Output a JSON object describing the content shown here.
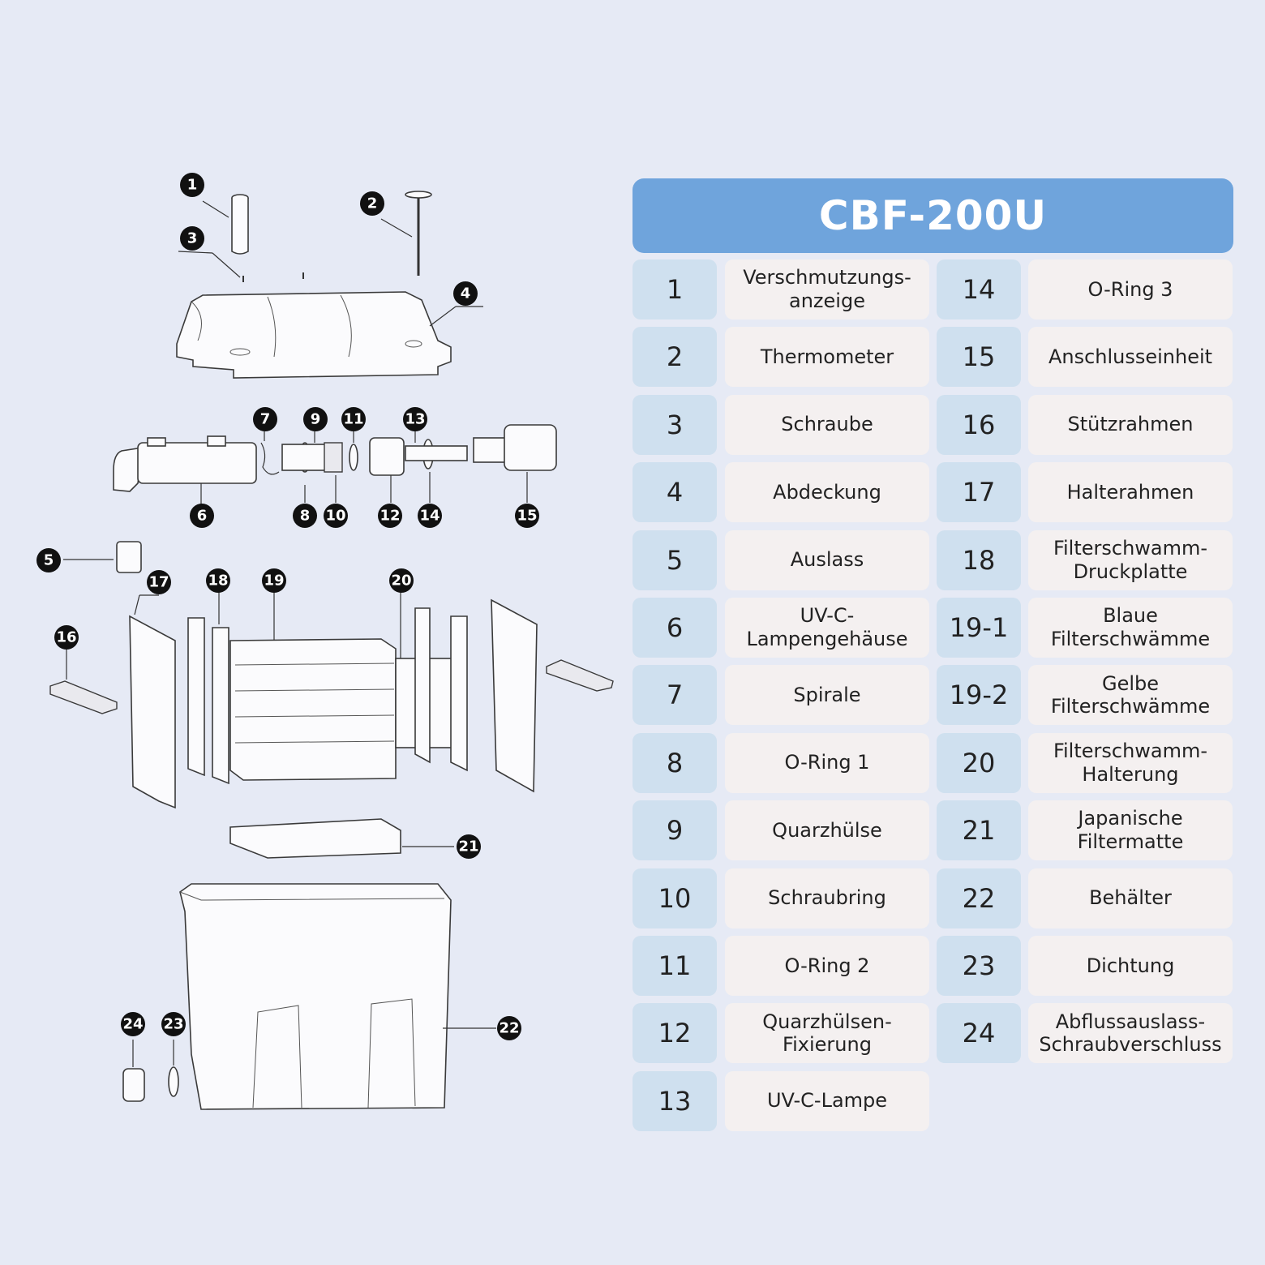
{
  "model_title": "CBF-200U",
  "callout_labels": [
    "1",
    "2",
    "3",
    "4",
    "5",
    "6",
    "7",
    "8",
    "9",
    "10",
    "11",
    "12",
    "13",
    "14",
    "15",
    "16",
    "17",
    "18",
    "19",
    "20",
    "21",
    "22",
    "23",
    "24"
  ],
  "parts_left": [
    {
      "number": "1",
      "name": "Verschmutzungs-\nanzeige"
    },
    {
      "number": "2",
      "name": "Thermometer"
    },
    {
      "number": "3",
      "name": "Schraube"
    },
    {
      "number": "4",
      "name": "Abdeckung"
    },
    {
      "number": "5",
      "name": "Auslass"
    },
    {
      "number": "6",
      "name": "UV-C-\nLampengehäuse"
    },
    {
      "number": "7",
      "name": "Spirale"
    },
    {
      "number": "8",
      "name": "O-Ring 1"
    },
    {
      "number": "9",
      "name": "Quarzhülse"
    },
    {
      "number": "10",
      "name": "Schraubring"
    },
    {
      "number": "11",
      "name": "O-Ring 2"
    },
    {
      "number": "12",
      "name": "Quarzhülsen-\nFixierung"
    },
    {
      "number": "13",
      "name": "UV-C-Lampe"
    }
  ],
  "parts_right": [
    {
      "number": "14",
      "name": "O-Ring 3"
    },
    {
      "number": "15",
      "name": "Anschlusseinheit"
    },
    {
      "number": "16",
      "name": "Stützrahmen"
    },
    {
      "number": "17",
      "name": "Halterahmen"
    },
    {
      "number": "18",
      "name": "Filterschwamm-\nDruckplatte"
    },
    {
      "number": "19-1",
      "name": "Blaue\nFilterschwämme"
    },
    {
      "number": "19-2",
      "name": "Gelbe\nFilterschwämme"
    },
    {
      "number": "20",
      "name": "Filterschwamm-\nHalterung"
    },
    {
      "number": "21",
      "name": "Japanische\nFiltermatte"
    },
    {
      "number": "22",
      "name": "Behälter"
    },
    {
      "number": "23",
      "name": "Dichtung"
    },
    {
      "number": "24",
      "name": "Abflussauslass-\nSchraubverschluss"
    }
  ]
}
